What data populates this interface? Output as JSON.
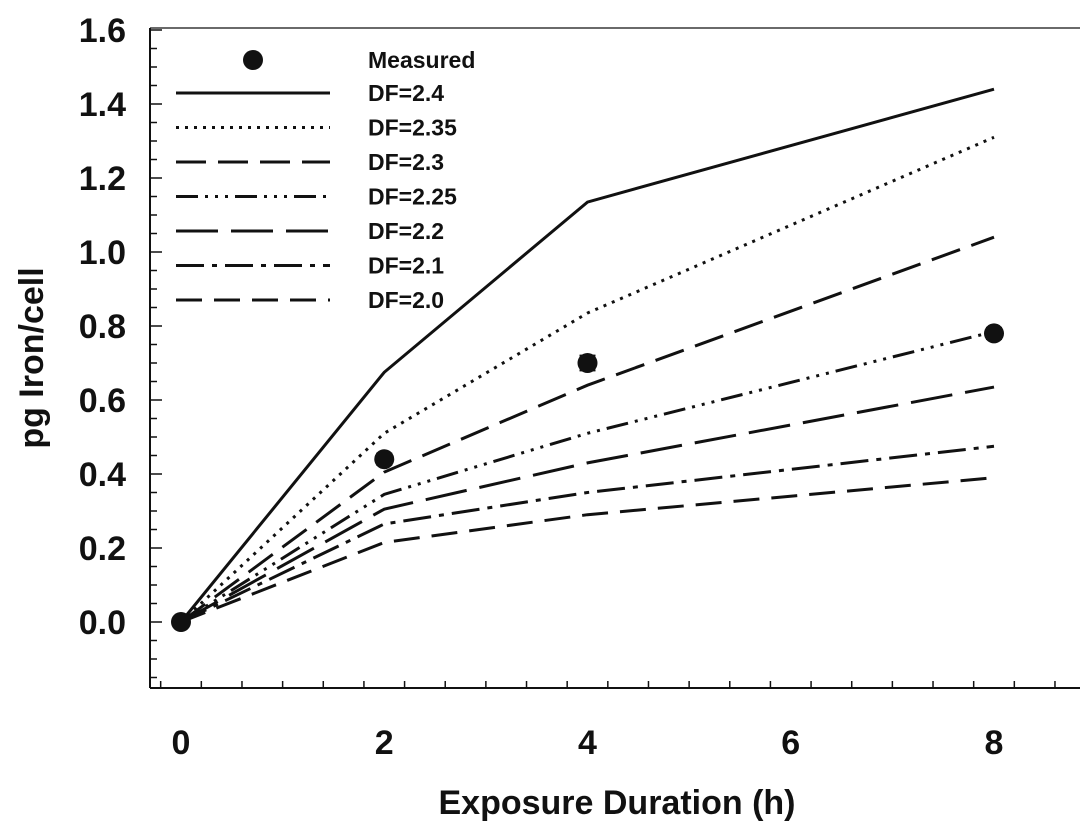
{
  "chart_data": {
    "type": "line",
    "xlabel": "Exposure Duration (h)",
    "ylabel": "pg Iron/cell",
    "xlim": [
      -0.3,
      8.9
    ],
    "ylim": [
      -0.17,
      1.6
    ],
    "xticks": [
      0,
      2,
      4,
      6,
      8
    ],
    "xtick_labels": [
      "0",
      "2",
      "4",
      "6",
      "8"
    ],
    "yticks": [
      0.0,
      0.2,
      0.4,
      0.6,
      0.8,
      1.0,
      1.2,
      1.4,
      1.6
    ],
    "ytick_labels": [
      "0.0",
      "0.2",
      "0.4",
      "0.6",
      "0.8",
      "1.0",
      "1.2",
      "1.4",
      "1.6"
    ],
    "grid": false,
    "legend_position": "top-left",
    "measured": {
      "name": "Measured",
      "x": [
        0,
        2,
        4,
        8
      ],
      "y": [
        0.0,
        0.44,
        0.7,
        0.78
      ],
      "error": [
        0.0,
        0.015,
        0.02,
        0.015
      ]
    },
    "series": [
      {
        "name": "DF=2.4",
        "x": [
          0,
          2,
          4,
          8
        ],
        "y": [
          0.0,
          0.675,
          1.135,
          1.44
        ],
        "dash": "none"
      },
      {
        "name": "DF=2.35",
        "x": [
          0,
          2,
          4,
          8
        ],
        "y": [
          0.0,
          0.51,
          0.835,
          1.31
        ],
        "dash": "3,6"
      },
      {
        "name": "DF=2.3",
        "x": [
          0,
          2,
          4,
          8
        ],
        "y": [
          0.0,
          0.405,
          0.64,
          1.04
        ],
        "dash": "30,12"
      },
      {
        "name": "DF=2.25",
        "x": [
          0,
          2,
          4,
          8
        ],
        "y": [
          0.0,
          0.345,
          0.51,
          0.785
        ],
        "dash": "22,7,3,7,3,7,3,7"
      },
      {
        "name": "DF=2.2",
        "x": [
          0,
          2,
          4,
          8
        ],
        "y": [
          0.0,
          0.305,
          0.43,
          0.635
        ],
        "dash": "42,13"
      },
      {
        "name": "DF=2.1",
        "x": [
          0,
          2,
          4,
          8
        ],
        "y": [
          0.0,
          0.265,
          0.35,
          0.475
        ],
        "dash": "28,8,5,8"
      },
      {
        "name": "DF=2.0",
        "x": [
          0,
          2,
          4,
          8
        ],
        "y": [
          0.0,
          0.215,
          0.29,
          0.39
        ],
        "dash": "26,12"
      }
    ]
  }
}
